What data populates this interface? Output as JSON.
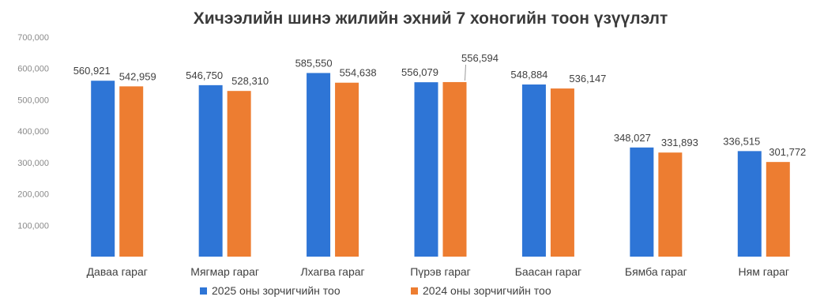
{
  "chart_data": {
    "type": "bar",
    "title": "Хичээлийн шинэ жилийн эхний 7 хоногийн тоон үзүүлэлт",
    "xlabel": "",
    "ylabel": "",
    "ylim": [
      0,
      700000
    ],
    "yticks": [
      100000,
      200000,
      300000,
      400000,
      500000,
      600000,
      700000
    ],
    "ytick_labels": [
      "100,000",
      "200,000",
      "300,000",
      "400,000",
      "500,000",
      "600,000",
      "700,000"
    ],
    "grid": false,
    "legend_position": "bottom",
    "categories": [
      "Даваа гараг",
      "Мягмар гараг",
      "Лхагва гараг",
      "Пүрэв гараг",
      "Баасан гараг",
      "Бямба гараг",
      "Ням гараг"
    ],
    "series": [
      {
        "name": "2025 оны зорчигчийн тоо",
        "color": "#2E75D6",
        "values": [
          560921,
          546750,
          585550,
          556079,
          548884,
          348027,
          336515
        ],
        "labels": [
          "560,921",
          "546,750",
          "585,550",
          "556,079",
          "548,884",
          "348,027",
          "336,515"
        ]
      },
      {
        "name": "2024 оны зорчигчийн тоо",
        "color": "#ED7D31",
        "values": [
          542959,
          528310,
          554638,
          556594,
          536147,
          331893,
          301772
        ],
        "labels": [
          "542,959",
          "528,310",
          "554,638",
          "556,594",
          "536,147",
          "331,893",
          "301,772"
        ]
      }
    ]
  }
}
